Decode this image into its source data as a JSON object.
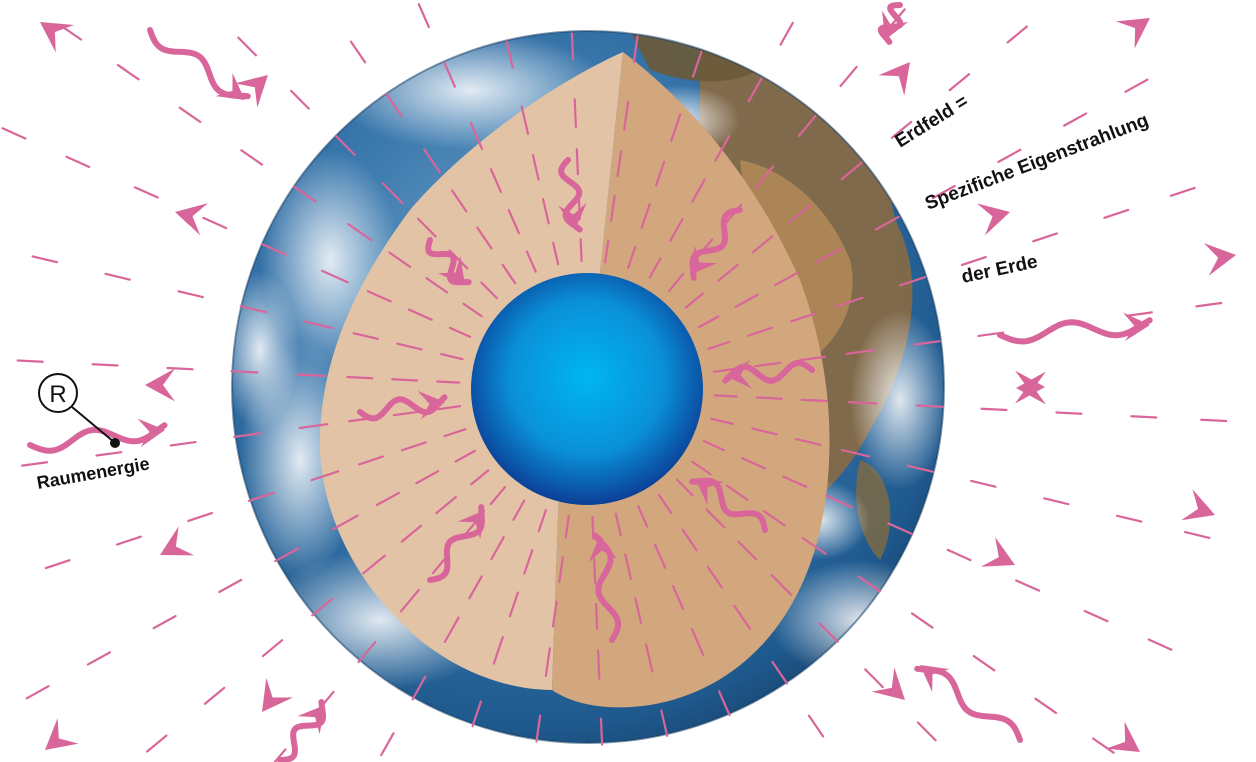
{
  "diagram": {
    "labels": {
      "line1": "Erdfeld =",
      "line2": "Spezifiche Eigenstrahlung",
      "line3": "der Erde"
    },
    "legend": {
      "symbol": "R",
      "label": "Raumenergie"
    },
    "colors": {
      "background": "#ffffff",
      "ray": "#d9669a",
      "ocean": "#2a6aa6",
      "mantle_light": "#e3c3a6",
      "mantle_dark": "#d2a77e",
      "core_center": "#00b4f0",
      "core_edge": "#0a4aa0",
      "text": "#111111"
    }
  }
}
